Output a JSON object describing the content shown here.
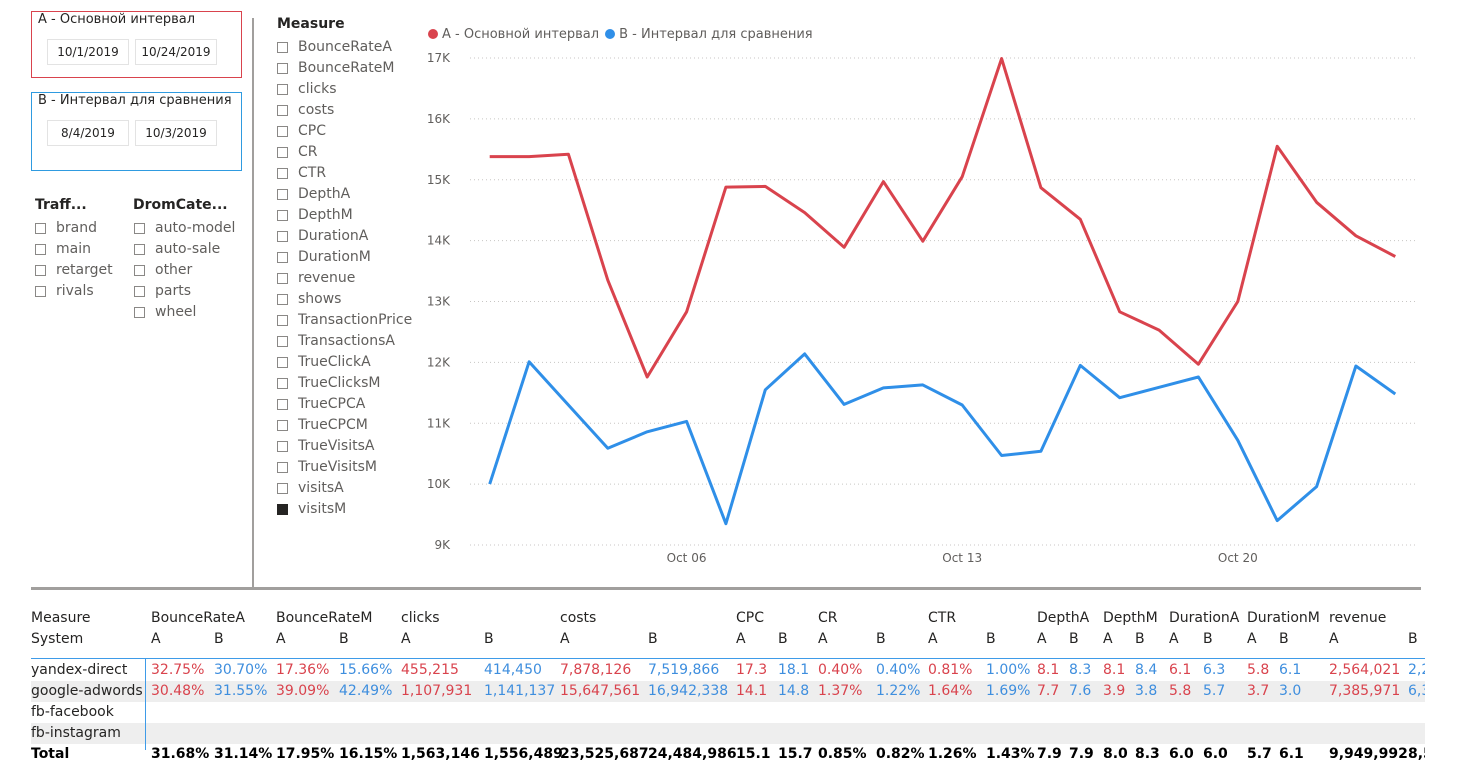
{
  "range_a": {
    "title": "A - Основной интервал",
    "start": "10/1/2019",
    "end": "10/24/2019"
  },
  "range_b": {
    "title": "B - Интервал для сравнения",
    "start": "8/4/2019",
    "end": "10/3/2019"
  },
  "traffic_slicer": {
    "title": "Traff...",
    "items": [
      {
        "label": "brand",
        "checked": false
      },
      {
        "label": "main",
        "checked": false
      },
      {
        "label": "retarget",
        "checked": false
      },
      {
        "label": "rivals",
        "checked": false
      }
    ]
  },
  "category_slicer": {
    "title": "DromCate...",
    "items": [
      {
        "label": "auto-model",
        "checked": false
      },
      {
        "label": "auto-sale",
        "checked": false
      },
      {
        "label": "other",
        "checked": false
      },
      {
        "label": "parts",
        "checked": false
      },
      {
        "label": "wheel",
        "checked": false
      }
    ]
  },
  "measure_slicer": {
    "title": "Measure",
    "items": [
      {
        "label": "BounceRateA",
        "checked": false
      },
      {
        "label": "BounceRateM",
        "checked": false
      },
      {
        "label": "clicks",
        "checked": false
      },
      {
        "label": "costs",
        "checked": false
      },
      {
        "label": "CPC",
        "checked": false
      },
      {
        "label": "CR",
        "checked": false
      },
      {
        "label": "CTR",
        "checked": false
      },
      {
        "label": "DepthA",
        "checked": false
      },
      {
        "label": "DepthM",
        "checked": false
      },
      {
        "label": "DurationA",
        "checked": false
      },
      {
        "label": "DurationM",
        "checked": false
      },
      {
        "label": "revenue",
        "checked": false
      },
      {
        "label": "shows",
        "checked": false
      },
      {
        "label": "TransactionPrice",
        "checked": false
      },
      {
        "label": "TransactionsA",
        "checked": false
      },
      {
        "label": "TrueClickA",
        "checked": false
      },
      {
        "label": "TrueClicksM",
        "checked": false
      },
      {
        "label": "TrueCPCA",
        "checked": false
      },
      {
        "label": "TrueCPCM",
        "checked": false
      },
      {
        "label": "TrueVisitsA",
        "checked": false
      },
      {
        "label": "TrueVisitsM",
        "checked": false
      },
      {
        "label": "visitsA",
        "checked": false
      },
      {
        "label": "visitsM",
        "checked": true
      }
    ]
  },
  "colors": {
    "series_a": "#d9434d",
    "series_b": "#2f8fe8",
    "grid": "#c8c6c4"
  },
  "chart_data": {
    "type": "line",
    "x_start": "Oct 01",
    "x": [
      1,
      2,
      3,
      4,
      5,
      6,
      7,
      8,
      9,
      10,
      11,
      12,
      13,
      14,
      15,
      16,
      17,
      18,
      19,
      20,
      21,
      22,
      23,
      24
    ],
    "series": [
      {
        "name": "A - Основной интервал",
        "values": [
          15380,
          15380,
          15420,
          13350,
          11760,
          12830,
          14880,
          14890,
          14460,
          13890,
          14970,
          13990,
          15050,
          16990,
          14870,
          14350,
          12830,
          12530,
          11970,
          13000,
          15550,
          14630,
          14080,
          13740
        ]
      },
      {
        "name": "B - Интервал для сравнения",
        "values": [
          10000,
          12010,
          11300,
          10590,
          10860,
          11030,
          9350,
          11550,
          12140,
          11310,
          11580,
          11630,
          11300,
          10470,
          10540,
          11950,
          11420,
          11590,
          11760,
          10720,
          9400,
          9960,
          11940,
          11480
        ]
      }
    ],
    "y_ticks": [
      "9K",
      "10K",
      "11K",
      "12K",
      "13K",
      "14K",
      "15K",
      "16K",
      "17K"
    ],
    "ylim": [
      9000,
      17000
    ],
    "x_ticks": [
      {
        "x": 6,
        "label": "Oct 06"
      },
      {
        "x": 13,
        "label": "Oct 13"
      },
      {
        "x": 20,
        "label": "Oct 20"
      }
    ],
    "grid": true,
    "legend_position": "top-left"
  },
  "table": {
    "measure_label": "Measure",
    "system_label": "System",
    "total_label": "Total",
    "columns": [
      {
        "measure": "BounceRateA",
        "sub": [
          "A",
          "B"
        ]
      },
      {
        "measure": "BounceRateM",
        "sub": [
          "A",
          "B"
        ]
      },
      {
        "measure": "clicks",
        "sub": [
          "A",
          "B"
        ]
      },
      {
        "measure": "costs",
        "sub": [
          "A",
          "B"
        ]
      },
      {
        "measure": "CPC",
        "sub": [
          "A",
          "B"
        ]
      },
      {
        "measure": "CR",
        "sub": [
          "A",
          "B"
        ]
      },
      {
        "measure": "CTR",
        "sub": [
          "A",
          "B"
        ]
      },
      {
        "measure": "DepthA",
        "sub": [
          "A",
          "B"
        ]
      },
      {
        "measure": "DepthM",
        "sub": [
          "A",
          "B"
        ]
      },
      {
        "measure": "DurationA",
        "sub": [
          "A",
          "B"
        ]
      },
      {
        "measure": "DurationM",
        "sub": [
          "A",
          "B"
        ]
      },
      {
        "measure": "revenue",
        "sub": [
          "A",
          "B"
        ]
      }
    ],
    "rows": [
      {
        "system": "yandex-direct",
        "values": [
          "32.75%",
          "30.70%",
          "17.36%",
          "15.66%",
          "455,215",
          "414,450",
          "7,878,126",
          "7,519,866",
          "17.3",
          "18.1",
          "0.40%",
          "0.40%",
          "0.81%",
          "1.00%",
          "8.1",
          "8.3",
          "8.1",
          "8.4",
          "6.1",
          "6.3",
          "5.8",
          "6.1",
          "2,564,021",
          "2,2"
        ]
      },
      {
        "system": "google-adwords",
        "values": [
          "30.48%",
          "31.55%",
          "39.09%",
          "42.49%",
          "1,107,931",
          "1,141,137",
          "15,647,561",
          "16,942,338",
          "14.1",
          "14.8",
          "1.37%",
          "1.22%",
          "1.64%",
          "1.69%",
          "7.7",
          "7.6",
          "3.9",
          "3.8",
          "5.8",
          "5.7",
          "3.7",
          "3.0",
          "7,385,971",
          "6,3"
        ]
      },
      {
        "system": "fb-facebook",
        "values": [
          "",
          "",
          "",
          "",
          "",
          "",
          "",
          "",
          "",
          "",
          "",
          "",
          "",
          "",
          "",
          "",
          "",
          "",
          "",
          "",
          "",
          "",
          "",
          ""
        ]
      },
      {
        "system": "fb-instagram",
        "values": [
          "",
          "",
          "",
          "",
          "",
          "",
          "",
          "",
          "",
          "",
          "",
          "",
          "",
          "",
          "",
          "",
          "",
          "",
          "",
          "",
          "",
          "",
          "",
          ""
        ]
      }
    ],
    "totals": [
      "31.68%",
      "31.14%",
      "17.95%",
      "16.15%",
      "1,563,146",
      "1,556,489",
      "23,525,687",
      "24,484,986",
      "15.1",
      "15.7",
      "0.85%",
      "0.82%",
      "1.26%",
      "1.43%",
      "7.9",
      "7.9",
      "8.0",
      "8.3",
      "6.0",
      "6.0",
      "5.7",
      "6.1",
      "9,949,992",
      "8,5"
    ]
  }
}
